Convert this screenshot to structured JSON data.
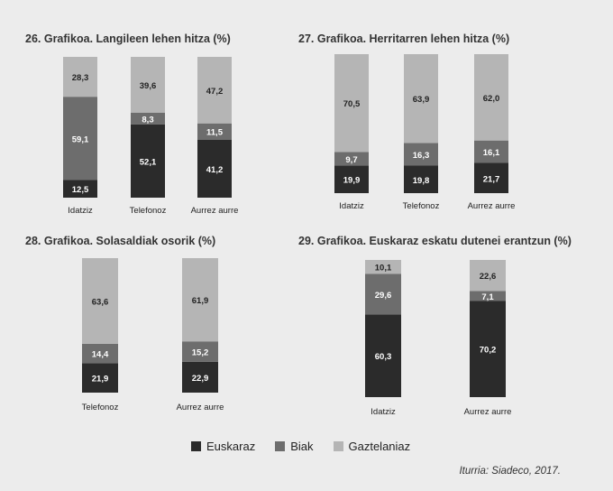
{
  "colors": {
    "Euskaraz": "#2b2b2b",
    "Biak": "#6d6d6d",
    "Gaztelaniaz": "#b5b5b5",
    "background": "#ececec"
  },
  "legend": {
    "items": [
      {
        "label": "Euskaraz",
        "color": "#2b2b2b"
      },
      {
        "label": "Biak",
        "color": "#6d6d6d"
      },
      {
        "label": "Gaztelaniaz",
        "color": "#b5b5b5"
      }
    ]
  },
  "source": "Iturria: Siadeco, 2017.",
  "chart_data": [
    {
      "type": "bar",
      "stacked": true,
      "title": "26. Grafikoa. Langileen lehen hitza (%)",
      "categories": [
        "Idatziz",
        "Telefonoz",
        "Aurrez aurre"
      ],
      "series": [
        {
          "name": "Euskaraz",
          "values": [
            12.5,
            52.1,
            41.2
          ],
          "labels": [
            "12,5",
            "52,1",
            "41,2"
          ]
        },
        {
          "name": "Biak",
          "values": [
            59.1,
            8.3,
            11.5
          ],
          "labels": [
            "59,1",
            "8,3",
            "11,5"
          ]
        },
        {
          "name": "Gaztelaniaz",
          "values": [
            28.3,
            39.6,
            47.2
          ],
          "labels": [
            "28,3",
            "39,6",
            "47,2"
          ]
        }
      ]
    },
    {
      "type": "bar",
      "stacked": true,
      "title": "27. Grafikoa. Herritarren lehen hitza (%)",
      "categories": [
        "Idatziz",
        "Telefonoz",
        "Aurrez aurre"
      ],
      "series": [
        {
          "name": "Euskaraz",
          "values": [
            19.9,
            19.8,
            21.7
          ],
          "labels": [
            "19,9",
            "19,8",
            "21,7"
          ]
        },
        {
          "name": "Biak",
          "values": [
            9.7,
            16.3,
            16.1
          ],
          "labels": [
            "9,7",
            "16,3",
            "16,1"
          ]
        },
        {
          "name": "Gaztelaniaz",
          "values": [
            70.5,
            63.9,
            62.0
          ],
          "labels": [
            "70,5",
            "63,9",
            "62,0"
          ]
        }
      ]
    },
    {
      "type": "bar",
      "stacked": true,
      "title": "28. Grafikoa. Solasaldiak osorik (%)",
      "categories": [
        "Telefonoz",
        "Aurrez aurre"
      ],
      "series": [
        {
          "name": "Euskaraz",
          "values": [
            21.9,
            22.9
          ],
          "labels": [
            "21,9",
            "22,9"
          ]
        },
        {
          "name": "Biak",
          "values": [
            14.4,
            15.2
          ],
          "labels": [
            "14,4",
            "15,2"
          ]
        },
        {
          "name": "Gaztelaniaz",
          "values": [
            63.6,
            61.9
          ],
          "labels": [
            "63,6",
            "61,9"
          ]
        }
      ]
    },
    {
      "type": "bar",
      "stacked": true,
      "title": "29. Grafikoa. Euskaraz eskatu dutenei erantzun (%)",
      "categories": [
        "Idatziz",
        "Aurrez aurre"
      ],
      "series": [
        {
          "name": "Euskaraz",
          "values": [
            60.3,
            70.2
          ],
          "labels": [
            "60,3",
            "70,2"
          ]
        },
        {
          "name": "Biak",
          "values": [
            29.6,
            7.1
          ],
          "labels": [
            "29,6",
            "7,1"
          ]
        },
        {
          "name": "Gaztelaniaz",
          "values": [
            10.1,
            22.6
          ],
          "labels": [
            "10,1",
            "22,6"
          ]
        }
      ]
    }
  ]
}
